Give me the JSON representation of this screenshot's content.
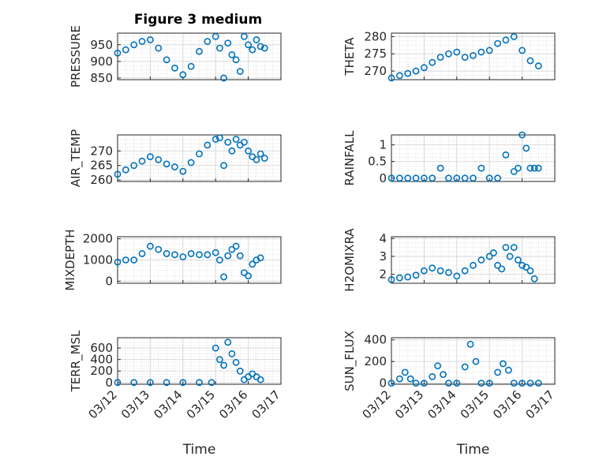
{
  "figure": {
    "title": "Figure 3 medium"
  },
  "chart_data": [
    {
      "type": "scatter",
      "panel": "PRESSURE",
      "ylabel": "PRESSURE",
      "xlabel": "",
      "ylim": [
        845,
        985
      ],
      "yticks": [
        850,
        900,
        950
      ],
      "xlim": [
        "03/12",
        "03/17"
      ],
      "xticks": [
        "03/12",
        "03/13",
        "03/14",
        "03/15",
        "03/16",
        "03/17"
      ],
      "show_xticklabels": false,
      "grid": true,
      "title": "Figure 3 medium",
      "x": [
        "03/12 00:00",
        "03/12 06:00",
        "03/12 12:00",
        "03/12 18:00",
        "03/13 00:00",
        "03/13 06:00",
        "03/13 12:00",
        "03/13 18:00",
        "03/14 00:00",
        "03/14 06:00",
        "03/14 12:00",
        "03/14 18:00",
        "03/15 00:00",
        "03/15 03:00",
        "03/15 06:00",
        "03/15 09:00",
        "03/15 12:00",
        "03/15 15:00",
        "03/15 18:00",
        "03/15 21:00",
        "03/16 00:00",
        "03/16 03:00",
        "03/16 06:00",
        "03/16 09:00",
        "03/16 12:00"
      ],
      "y": [
        925,
        935,
        950,
        960,
        965,
        940,
        905,
        880,
        860,
        885,
        930,
        960,
        975,
        940,
        850,
        955,
        920,
        905,
        870,
        975,
        950,
        935,
        965,
        945,
        940
      ]
    },
    {
      "type": "scatter",
      "panel": "THETA",
      "ylabel": "THETA",
      "xlabel": "",
      "ylim": [
        267.5,
        281
      ],
      "yticks": [
        270,
        275,
        280
      ],
      "xlim": [
        "03/12",
        "03/17"
      ],
      "xticks": [
        "03/12",
        "03/13",
        "03/14",
        "03/15",
        "03/16",
        "03/17"
      ],
      "show_xticklabels": false,
      "grid": true,
      "x": [
        "03/12 00:00",
        "03/12 06:00",
        "03/12 12:00",
        "03/12 18:00",
        "03/13 00:00",
        "03/13 06:00",
        "03/13 12:00",
        "03/13 18:00",
        "03/14 00:00",
        "03/14 06:00",
        "03/14 12:00",
        "03/14 18:00",
        "03/15 00:00",
        "03/15 06:00",
        "03/15 12:00",
        "03/15 18:00",
        "03/16 00:00",
        "03/16 06:00",
        "03/16 12:00"
      ],
      "y": [
        268,
        268.7,
        269.3,
        270,
        271,
        272.5,
        274,
        275,
        275.5,
        274,
        274.5,
        275.5,
        276,
        278,
        279,
        280,
        276,
        273,
        271.5
      ]
    },
    {
      "type": "scatter",
      "panel": "AIR_TEMP",
      "ylabel": "AIR_TEMP",
      "xlabel": "",
      "ylim": [
        259.5,
        275.5
      ],
      "yticks": [
        260,
        265,
        270
      ],
      "xlim": [
        "03/12",
        "03/17"
      ],
      "xticks": [
        "03/12",
        "03/13",
        "03/14",
        "03/15",
        "03/16",
        "03/17"
      ],
      "show_xticklabels": false,
      "grid": true,
      "x": [
        "03/12 00:00",
        "03/12 06:00",
        "03/12 12:00",
        "03/12 18:00",
        "03/13 00:00",
        "03/13 06:00",
        "03/13 12:00",
        "03/13 18:00",
        "03/14 00:00",
        "03/14 06:00",
        "03/14 12:00",
        "03/14 18:00",
        "03/15 00:00",
        "03/15 03:00",
        "03/15 06:00",
        "03/15 09:00",
        "03/15 12:00",
        "03/15 15:00",
        "03/15 18:00",
        "03/15 21:00",
        "03/16 00:00",
        "03/16 03:00",
        "03/16 06:00",
        "03/16 09:00",
        "03/16 12:00"
      ],
      "y": [
        262,
        263.5,
        265,
        266.5,
        268,
        267,
        265.5,
        264.5,
        263,
        266,
        269,
        272,
        274,
        274.5,
        265,
        273,
        270,
        274,
        272,
        273,
        270,
        268,
        267,
        269,
        267.5
      ]
    },
    {
      "type": "scatter",
      "panel": "RAINFALL",
      "ylabel": "RAINFALL",
      "xlabel": "",
      "ylim": [
        -0.1,
        1.3
      ],
      "yticks": [
        0,
        0.5,
        1
      ],
      "xlim": [
        "03/12",
        "03/17"
      ],
      "xticks": [
        "03/12",
        "03/13",
        "03/14",
        "03/15",
        "03/16",
        "03/17"
      ],
      "show_xticklabels": false,
      "grid": true,
      "x": [
        "03/12 00:00",
        "03/12 06:00",
        "03/12 12:00",
        "03/12 18:00",
        "03/13 00:00",
        "03/13 06:00",
        "03/13 12:00",
        "03/13 18:00",
        "03/14 00:00",
        "03/14 06:00",
        "03/14 12:00",
        "03/14 18:00",
        "03/15 00:00",
        "03/15 06:00",
        "03/15 12:00",
        "03/15 18:00",
        "03/15 21:00",
        "03/16 00:00",
        "03/16 03:00",
        "03/16 06:00",
        "03/16 09:00",
        "03/16 12:00"
      ],
      "y": [
        0,
        0,
        0,
        0,
        0,
        0,
        0.3,
        0,
        0,
        0,
        0,
        0.3,
        0,
        0,
        0.7,
        0.2,
        0.3,
        1.3,
        0.9,
        0.3,
        0.3,
        0.3
      ]
    },
    {
      "type": "scatter",
      "panel": "MIXDEPTH",
      "ylabel": "MIXDEPTH",
      "xlabel": "",
      "ylim": [
        -100,
        2100
      ],
      "yticks": [
        0,
        1000,
        2000
      ],
      "xlim": [
        "03/12",
        "03/17"
      ],
      "xticks": [
        "03/12",
        "03/13",
        "03/14",
        "03/15",
        "03/16",
        "03/17"
      ],
      "show_xticklabels": false,
      "grid": true,
      "x": [
        "03/12 00:00",
        "03/12 06:00",
        "03/12 12:00",
        "03/12 18:00",
        "03/13 00:00",
        "03/13 06:00",
        "03/13 12:00",
        "03/13 18:00",
        "03/14 00:00",
        "03/14 06:00",
        "03/14 12:00",
        "03/14 18:00",
        "03/15 00:00",
        "03/15 03:00",
        "03/15 06:00",
        "03/15 09:00",
        "03/15 12:00",
        "03/15 15:00",
        "03/15 18:00",
        "03/15 21:00",
        "03/16 00:00",
        "03/16 03:00",
        "03/16 06:00",
        "03/16 09:00"
      ],
      "y": [
        900,
        1000,
        1000,
        1300,
        1650,
        1500,
        1300,
        1250,
        1150,
        1300,
        1250,
        1250,
        1350,
        1000,
        200,
        1200,
        1500,
        1650,
        1200,
        400,
        250,
        800,
        1000,
        1100
      ]
    },
    {
      "type": "scatter",
      "panel": "H2OMIXRA",
      "ylabel": "H2OMIXRA",
      "xlabel": "",
      "ylim": [
        1.5,
        4.1
      ],
      "yticks": [
        2,
        3,
        4
      ],
      "xlim": [
        "03/12",
        "03/17"
      ],
      "xticks": [
        "03/12",
        "03/13",
        "03/14",
        "03/15",
        "03/16",
        "03/17"
      ],
      "show_xticklabels": false,
      "grid": true,
      "x": [
        "03/12 00:00",
        "03/12 06:00",
        "03/12 12:00",
        "03/12 18:00",
        "03/13 00:00",
        "03/13 06:00",
        "03/13 12:00",
        "03/13 18:00",
        "03/14 00:00",
        "03/14 06:00",
        "03/14 12:00",
        "03/14 18:00",
        "03/15 00:00",
        "03/15 03:00",
        "03/15 06:00",
        "03/15 09:00",
        "03/15 12:00",
        "03/15 15:00",
        "03/15 18:00",
        "03/15 21:00",
        "03/16 00:00",
        "03/16 03:00",
        "03/16 06:00",
        "03/16 09:00"
      ],
      "y": [
        1.7,
        1.8,
        1.85,
        1.95,
        2.2,
        2.35,
        2.2,
        2.1,
        1.9,
        2.2,
        2.5,
        2.8,
        3.0,
        3.2,
        2.5,
        2.3,
        3.5,
        3.0,
        3.5,
        2.8,
        2.5,
        2.4,
        2.2,
        1.75
      ]
    },
    {
      "type": "scatter",
      "panel": "TERR_MSL",
      "ylabel": "TERR_MSL",
      "xlabel": "Time",
      "ylim": [
        -30,
        780
      ],
      "yticks": [
        0,
        200,
        400,
        600
      ],
      "xlim": [
        "03/12",
        "03/17"
      ],
      "xticks": [
        "03/12",
        "03/13",
        "03/14",
        "03/15",
        "03/16",
        "03/17"
      ],
      "show_xticklabels": true,
      "grid": true,
      "x": [
        "03/12 00:00",
        "03/12 12:00",
        "03/13 00:00",
        "03/13 12:00",
        "03/14 00:00",
        "03/14 12:00",
        "03/14 21:00",
        "03/15 00:00",
        "03/15 03:00",
        "03/15 06:00",
        "03/15 09:00",
        "03/15 12:00",
        "03/15 15:00",
        "03/15 18:00",
        "03/15 21:00",
        "03/16 00:00",
        "03/16 03:00",
        "03/16 06:00",
        "03/16 09:00"
      ],
      "y": [
        0,
        0,
        0,
        0,
        0,
        0,
        0,
        600,
        400,
        300,
        700,
        500,
        350,
        200,
        50,
        100,
        150,
        100,
        50
      ]
    },
    {
      "type": "scatter",
      "panel": "SUN_FLUX",
      "ylabel": "SUN_FLUX",
      "xlabel": "Time",
      "ylim": [
        -10,
        420
      ],
      "yticks": [
        0,
        200,
        400
      ],
      "xlim": [
        "03/12",
        "03/17"
      ],
      "xticks": [
        "03/12",
        "03/13",
        "03/14",
        "03/15",
        "03/16",
        "03/17"
      ],
      "show_xticklabels": true,
      "grid": true,
      "x": [
        "03/12 00:00",
        "03/12 06:00",
        "03/12 10:00",
        "03/12 14:00",
        "03/12 18:00",
        "03/13 00:00",
        "03/13 06:00",
        "03/13 10:00",
        "03/13 14:00",
        "03/13 18:00",
        "03/14 00:00",
        "03/14 06:00",
        "03/14 10:00",
        "03/14 14:00",
        "03/14 18:00",
        "03/15 00:00",
        "03/15 06:00",
        "03/15 10:00",
        "03/15 14:00",
        "03/15 18:00",
        "03/16 00:00",
        "03/16 06:00",
        "03/16 12:00"
      ],
      "y": [
        0,
        40,
        100,
        40,
        0,
        0,
        60,
        160,
        80,
        0,
        0,
        150,
        360,
        200,
        0,
        0,
        100,
        180,
        120,
        0,
        0,
        0,
        0
      ]
    }
  ],
  "style": {
    "marker_color": "#0072BD",
    "grid_color": "#d9d9d9",
    "axis_color": "#262626"
  }
}
